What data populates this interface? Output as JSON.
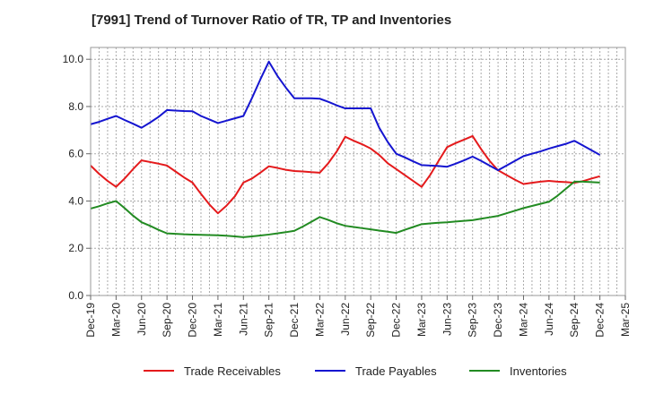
{
  "chart_data": {
    "type": "line",
    "title": "[7991]  Trend of Turnover Ratio of TR, TP and Inventories",
    "xlabel": "",
    "ylabel": "",
    "ylim": [
      0,
      10.5
    ],
    "yticks": [
      "0.0",
      "2.0",
      "4.0",
      "6.0",
      "8.0",
      "10.0"
    ],
    "ytick_values": [
      0,
      2,
      4,
      6,
      8,
      10
    ],
    "x_tick_labels": [
      "Dec-19",
      "Mar-20",
      "Jun-20",
      "Sep-20",
      "Dec-20",
      "Mar-21",
      "Jun-21",
      "Sep-21",
      "Dec-21",
      "Mar-22",
      "Jun-22",
      "Sep-22",
      "Dec-22",
      "Mar-23",
      "Jun-23",
      "Sep-23",
      "Dec-23",
      "Mar-24",
      "Jun-24",
      "Sep-24",
      "Dec-24",
      "Mar-25"
    ],
    "x": [
      "Dec-19",
      "Jan-20",
      "Feb-20",
      "Mar-20",
      "Apr-20",
      "May-20",
      "Jun-20",
      "Jul-20",
      "Aug-20",
      "Sep-20",
      "Oct-20",
      "Nov-20",
      "Dec-20",
      "Jan-21",
      "Feb-21",
      "Mar-21",
      "Apr-21",
      "May-21",
      "Jun-21",
      "Jul-21",
      "Aug-21",
      "Sep-21",
      "Oct-21",
      "Nov-21",
      "Dec-21",
      "Jan-22",
      "Feb-22",
      "Mar-22",
      "Apr-22",
      "May-22",
      "Jun-22",
      "Jul-22",
      "Aug-22",
      "Sep-22",
      "Oct-22",
      "Nov-22",
      "Dec-22",
      "Jan-23",
      "Feb-23",
      "Mar-23",
      "Apr-23",
      "May-23",
      "Jun-23",
      "Jul-23",
      "Aug-23",
      "Sep-23",
      "Oct-23",
      "Nov-23",
      "Dec-23",
      "Jan-24",
      "Feb-24",
      "Mar-24",
      "Apr-24",
      "May-24",
      "Jun-24",
      "Jul-24",
      "Aug-24",
      "Sep-24",
      "Oct-24",
      "Nov-24",
      "Dec-24"
    ],
    "grid": true,
    "legend_position": "bottom",
    "series": [
      {
        "name": "Trade Receivables",
        "color": "#e41a1c",
        "values": [
          5.5,
          5.15,
          4.85,
          4.6,
          4.95,
          5.35,
          5.72,
          5.65,
          5.58,
          5.5,
          5.25,
          5.0,
          4.78,
          4.3,
          3.85,
          3.48,
          3.8,
          4.2,
          4.78,
          4.95,
          5.2,
          5.47,
          5.4,
          5.32,
          5.27,
          5.25,
          5.22,
          5.2,
          5.6,
          6.1,
          6.72,
          6.55,
          6.4,
          6.22,
          5.95,
          5.6,
          5.35,
          5.1,
          4.85,
          4.6,
          5.1,
          5.7,
          6.28,
          6.45,
          6.6,
          6.75,
          6.2,
          5.7,
          5.3,
          5.1,
          4.9,
          4.72,
          4.77,
          4.82,
          4.85,
          4.82,
          4.8,
          4.77,
          4.84,
          4.95,
          5.05
        ]
      },
      {
        "name": "Trade Payables",
        "color": "#1515d0",
        "values": [
          7.25,
          7.35,
          7.48,
          7.6,
          7.43,
          7.27,
          7.1,
          7.32,
          7.56,
          7.85,
          7.83,
          7.81,
          7.8,
          7.6,
          7.45,
          7.3,
          7.4,
          7.5,
          7.6,
          8.35,
          9.15,
          9.9,
          9.3,
          8.8,
          8.35,
          8.35,
          8.35,
          8.33,
          8.2,
          8.05,
          7.92,
          7.92,
          7.92,
          7.92,
          7.1,
          6.5,
          6.0,
          5.85,
          5.68,
          5.52,
          5.5,
          5.48,
          5.45,
          5.58,
          5.72,
          5.88,
          5.7,
          5.5,
          5.3,
          5.5,
          5.7,
          5.9,
          6.0,
          6.1,
          6.22,
          6.32,
          6.42,
          6.55,
          6.35,
          6.15,
          5.95
        ]
      },
      {
        "name": "Inventories",
        "color": "#228b22",
        "values": [
          3.68,
          3.78,
          3.9,
          4.0,
          3.7,
          3.38,
          3.1,
          2.95,
          2.78,
          2.63,
          2.61,
          2.59,
          2.58,
          2.57,
          2.56,
          2.55,
          2.53,
          2.5,
          2.47,
          2.5,
          2.54,
          2.58,
          2.63,
          2.68,
          2.74,
          2.92,
          3.12,
          3.32,
          3.2,
          3.06,
          2.95,
          2.9,
          2.85,
          2.8,
          2.75,
          2.7,
          2.65,
          2.78,
          2.9,
          3.02,
          3.05,
          3.08,
          3.1,
          3.13,
          3.16,
          3.19,
          3.25,
          3.31,
          3.37,
          3.48,
          3.59,
          3.7,
          3.79,
          3.88,
          3.97,
          4.22,
          4.52,
          4.82,
          4.82,
          4.8,
          4.78
        ]
      }
    ]
  }
}
